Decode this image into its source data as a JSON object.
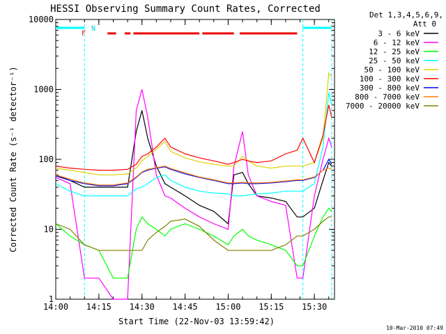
{
  "chart_data": {
    "type": "line",
    "title": "HESSI Observing Summary Count Rates, Corrected",
    "xlabel": "Start Time (22-Nov-03 13:59:42)",
    "ylabel": "Corrected Count Rate (s⁻¹ detector⁻¹)",
    "yscale": "log",
    "ylim": [
      1,
      10000
    ],
    "xlim": [
      "14:00",
      "15:37"
    ],
    "x_ticks": [
      "14:00",
      "14:15",
      "14:30",
      "14:45",
      "15:00",
      "15:15",
      "15:30"
    ],
    "y_ticks": [
      "1",
      "10",
      "100",
      "1000",
      "10000"
    ],
    "legend_header": [
      "Det 1,3,4,5,6,9,",
      "Att 0"
    ],
    "legend_position": "right",
    "footer": "10-Mar-2010 07:49",
    "flags": {
      "labels": [
        "F",
        "N"
      ],
      "flare_segments": [
        [
          "14:18",
          "14:21"
        ],
        [
          "14:24",
          "14:26"
        ],
        [
          "14:27",
          "14:50"
        ],
        [
          "14:51",
          "15:02"
        ],
        [
          "15:04",
          "15:24"
        ]
      ],
      "night_segments": [
        [
          "14:00",
          "14:10"
        ],
        [
          "15:26",
          "15:36"
        ]
      ],
      "night_boundaries": [
        "14:10",
        "15:26",
        "15:36"
      ]
    },
    "x": [
      "14:00",
      "14:05",
      "14:10",
      "14:15",
      "14:20",
      "14:25",
      "14:28",
      "14:30",
      "14:32",
      "14:35",
      "14:38",
      "14:40",
      "14:45",
      "14:50",
      "14:55",
      "15:00",
      "15:02",
      "15:05",
      "15:07",
      "15:10",
      "15:15",
      "15:20",
      "15:24",
      "15:26",
      "15:30",
      "15:33",
      "15:35",
      "15:36"
    ],
    "series": [
      {
        "name": "3 - 6 keV",
        "color": "#000000",
        "values": [
          60,
          50,
          40,
          40,
          40,
          40,
          250,
          500,
          200,
          80,
          45,
          40,
          30,
          22,
          18,
          12,
          60,
          65,
          45,
          30,
          28,
          25,
          15,
          15,
          20,
          50,
          90,
          80
        ]
      },
      {
        "name": "6 - 12 keV",
        "color": "#ff00ff",
        "values": [
          55,
          45,
          2,
          2,
          1,
          1,
          500,
          1000,
          400,
          60,
          30,
          28,
          20,
          15,
          12,
          10,
          80,
          250,
          60,
          30,
          25,
          22,
          2,
          2,
          30,
          100,
          200,
          150
        ]
      },
      {
        "name": "12 - 25 keV",
        "color": "#00ff00",
        "values": [
          12,
          8,
          6,
          5,
          2,
          2,
          10,
          15,
          12,
          10,
          8,
          10,
          12,
          10,
          8,
          6,
          8,
          10,
          8,
          7,
          6,
          5,
          3,
          3,
          8,
          15,
          20,
          18
        ]
      },
      {
        "name": "25 - 50 keV",
        "color": "#00ffff",
        "values": [
          45,
          35,
          30,
          30,
          30,
          30,
          38,
          40,
          45,
          55,
          60,
          50,
          40,
          35,
          33,
          32,
          30,
          30,
          31,
          32,
          33,
          35,
          35,
          35,
          45,
          150,
          900,
          600
        ]
      },
      {
        "name": "50 - 100 keV",
        "color": "#e0d000",
        "values": [
          75,
          70,
          65,
          60,
          60,
          62,
          75,
          95,
          110,
          140,
          180,
          130,
          105,
          92,
          85,
          80,
          80,
          110,
          95,
          80,
          75,
          80,
          80,
          80,
          90,
          200,
          1700,
          1500
        ]
      },
      {
        "name": "100 - 300 keV",
        "color": "#ff0000",
        "values": [
          80,
          75,
          72,
          70,
          70,
          72,
          85,
          110,
          120,
          150,
          200,
          150,
          120,
          105,
          95,
          85,
          90,
          100,
          95,
          90,
          95,
          120,
          135,
          200,
          90,
          220,
          600,
          400
        ]
      },
      {
        "name": "300 - 800 keV",
        "color": "#0000ff",
        "values": [
          58,
          50,
          45,
          42,
          42,
          45,
          55,
          65,
          70,
          75,
          78,
          72,
          62,
          55,
          50,
          45,
          45,
          46,
          45,
          45,
          46,
          48,
          50,
          50,
          55,
          70,
          100,
          85
        ]
      },
      {
        "name": "800 - 7000 keV",
        "color": "#ff8000",
        "values": [
          60,
          52,
          46,
          43,
          43,
          46,
          56,
          66,
          72,
          76,
          80,
          74,
          64,
          56,
          51,
          46,
          46,
          47,
          46,
          46,
          47,
          49,
          51,
          51,
          56,
          70,
          75,
          72
        ]
      },
      {
        "name": "7000 - 20000 keV",
        "color": "#808000",
        "values": [
          12,
          10,
          6,
          5,
          5,
          5,
          5,
          5,
          7,
          9,
          11,
          13,
          14,
          11,
          7,
          5,
          5,
          5,
          5,
          5,
          5,
          6,
          8,
          8,
          10,
          13,
          15,
          15
        ]
      }
    ]
  }
}
